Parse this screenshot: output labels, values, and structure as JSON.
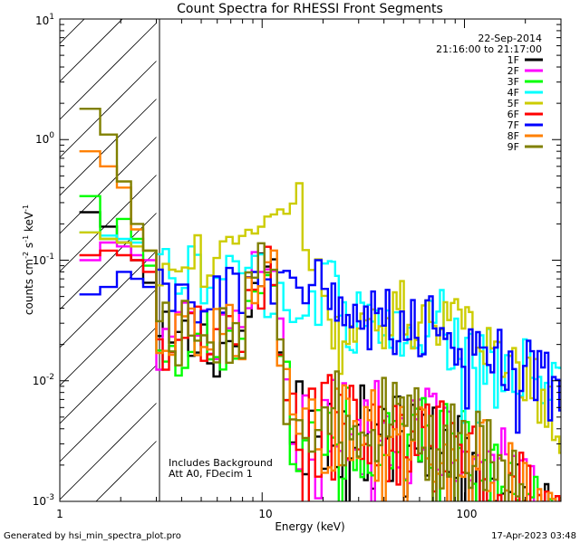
{
  "chart_data": {
    "type": "line",
    "title": "Count Spectra for RHESSI Front Segments",
    "xlabel": "Energy (keV)",
    "ylabel_parts": {
      "a": "counts cm",
      "b": "-2",
      "c": " s",
      "d": "-1",
      "e": " keV",
      "f": "-1"
    },
    "xscale": "log",
    "yscale": "log",
    "xlim": [
      1,
      300
    ],
    "ylim": [
      0.001,
      10
    ],
    "x_ticks": [
      {
        "value": 1,
        "label": "1"
      },
      {
        "value": 10,
        "label": "10"
      },
      {
        "value": 100,
        "label": "100"
      }
    ],
    "y_ticks": [
      {
        "value": 0.001,
        "base": "10",
        "exp": "-3"
      },
      {
        "value": 0.01,
        "base": "10",
        "exp": "-2"
      },
      {
        "value": 0.1,
        "base": "10",
        "exp": "-1"
      },
      {
        "value": 1,
        "base": "10",
        "exp": "0"
      },
      {
        "value": 10,
        "base": "10",
        "exp": "1"
      }
    ],
    "hatched_region": {
      "x_min": 1,
      "x_max": 3
    },
    "date": "22-Sep-2014",
    "time_range": "21:16:00 to 21:17:00",
    "annotation_lines": [
      "Includes Background",
      "Att A0, FDecim 1"
    ],
    "legend_position": "top-right",
    "series": [
      {
        "name": "1F",
        "color": "#000000",
        "profile": "thermal_tail",
        "low": [
          0.25,
          0.19,
          0.14,
          0.1,
          0.065
        ],
        "peak": 0.095,
        "shift": 0.0
      },
      {
        "name": "2F",
        "color": "#ff00ff",
        "profile": "thermal_tail",
        "low": [
          0.1,
          0.14,
          0.13,
          0.11,
          0.1
        ],
        "peak": 0.11,
        "shift": 0.45
      },
      {
        "name": "3F",
        "color": "#00ff00",
        "profile": "thermal_tail",
        "low": [
          0.34,
          0.15,
          0.22,
          0.15,
          0.09
        ],
        "peak": 0.12,
        "shift": 0.1
      },
      {
        "name": "4F",
        "color": "#00ffff",
        "profile": "flat_bump",
        "low": [
          0.17,
          0.16,
          0.15,
          0.14,
          0.12
        ],
        "peak": 0.09,
        "shift": 0.6
      },
      {
        "name": "5F",
        "color": "#cccc00",
        "profile": "hot_thermal",
        "low": [
          0.17,
          0.15,
          0.14,
          0.13,
          0.12
        ],
        "peak": 0.28,
        "shift": 0.0
      },
      {
        "name": "6F",
        "color": "#ff0000",
        "profile": "thermal_tail",
        "low": [
          0.11,
          0.12,
          0.11,
          0.1,
          0.08
        ],
        "peak": 0.1,
        "shift": 0.2
      },
      {
        "name": "7F",
        "color": "#0000ff",
        "profile": "flat_bump",
        "low": [
          0.052,
          0.06,
          0.08,
          0.07,
          0.06
        ],
        "peak": 0.08,
        "shift": 0.0
      },
      {
        "name": "8F",
        "color": "#ff8000",
        "profile": "thermal_tail",
        "low": [
          0.8,
          0.6,
          0.4,
          0.18,
          0.12
        ],
        "peak": 0.11,
        "shift": 0.35
      },
      {
        "name": "9F",
        "color": "#808000",
        "profile": "thermal_tail",
        "low": [
          1.8,
          1.1,
          0.45,
          0.2,
          0.12
        ],
        "peak": 0.11,
        "shift": 0.7
      }
    ]
  },
  "footer": {
    "generated_by": "Generated by hsi_min_spectra_plot.pro",
    "timestamp": "17-Apr-2023 03:48"
  }
}
